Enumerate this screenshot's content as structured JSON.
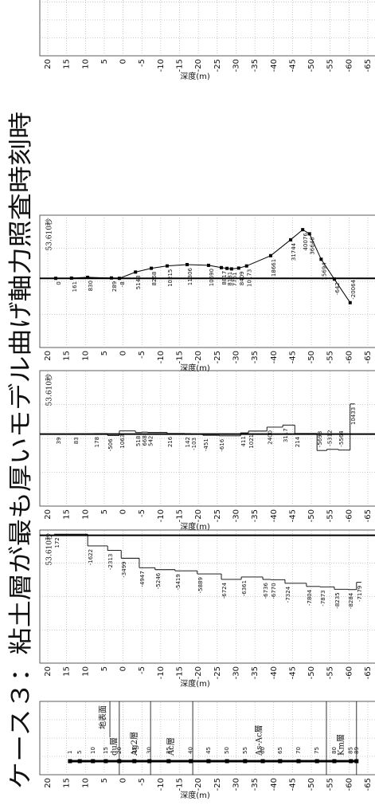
{
  "title": "ケース３：粘土層が最も厚いモデル曲げ軸力照査時刻時",
  "chart_data": [
    {
      "type": "column",
      "ylabel": "深度(m)",
      "ylim": [
        20,
        -65
      ],
      "yticks": [
        20,
        15,
        10,
        5,
        0,
        -5,
        -10,
        -15,
        -20,
        -25,
        -30,
        -35,
        -40,
        -45,
        -50,
        -55,
        -60,
        -65
      ],
      "surface_label": "地表面",
      "surface_depth": 3.5,
      "layers": [
        {
          "name": "du層",
          "top": 3.5,
          "bottom": 1
        },
        {
          "name": "Ag2層",
          "top": 1,
          "bottom": -7.3
        },
        {
          "name": "Ac層",
          "top": -7.3,
          "bottom": -18.5
        },
        {
          "name": "As-Ac層",
          "top": -18.5,
          "bottom": -54
        },
        {
          "name": "Km層",
          "top": -54,
          "bottom": -62
        }
      ],
      "nodes": {
        "labels": [
          "1",
          "5",
          "10",
          "15",
          "20",
          "25",
          "30",
          "35",
          "40",
          "45",
          "50",
          "55",
          "60",
          "65",
          "70",
          "75",
          "80",
          "85",
          "89"
        ],
        "depths": [
          14.1,
          11.5,
          8,
          4.6,
          1,
          -3,
          -7,
          -12.1,
          -18,
          -22.7,
          -27.6,
          -32.4,
          -37.1,
          -41.7,
          -46.6,
          -51.5,
          -56.1,
          -60.5,
          -62
        ]
      }
    },
    {
      "type": "step",
      "time_label": "53.610秒",
      "ylabel": "深度(m)",
      "ylim": [
        20,
        -65
      ],
      "yticks": [
        20,
        15,
        10,
        5,
        0,
        -5,
        -10,
        -15,
        -20,
        -25,
        -30,
        -35,
        -40,
        -45,
        -50,
        -55,
        -60,
        -65
      ],
      "xlim": [
        -19500,
        800
      ],
      "values": [
        172,
        -1622,
        -2313,
        -3499,
        -4947,
        -5246,
        -5419,
        -5889,
        -6724,
        -6361,
        -6736,
        -6770,
        -7324,
        -7804,
        -7873,
        -8235,
        -8284,
        -7179
      ],
      "y": [
        18.3,
        9.4,
        4.1,
        0.5,
        -4.3,
        -8.5,
        -13.8,
        -19.7,
        -26.1,
        -31.4,
        -37.1,
        -39.2,
        -43,
        -48.7,
        -52.3,
        -56.1,
        -59.7,
        -62
      ]
    },
    {
      "type": "step",
      "time_label": "53.610秒",
      "ylabel": "深度(m)",
      "ylim": [
        20,
        -65
      ],
      "yticks": [
        20,
        15,
        10,
        5,
        0,
        -5,
        -10,
        -15,
        -20,
        -25,
        -30,
        -35,
        -40,
        -45,
        -50,
        -55,
        -60,
        -65
      ],
      "xlim": [
        -25000,
        22000
      ],
      "values": [
        39,
        83,
        178,
        -506,
        1063,
        518,
        668,
        542,
        216,
        142,
        -103,
        -451,
        -616,
        411,
        1021,
        2400,
        3117,
        214,
        -5698,
        -5312,
        -5564,
        10433
      ],
      "y": [
        17.9,
        13.2,
        7.7,
        4.1,
        1,
        -3.3,
        -5,
        -6.5,
        -11.7,
        -16.4,
        -18.1,
        -21.2,
        -25.5,
        -31.2,
        -33.3,
        -38.2,
        -42.4,
        -45.6,
        -51.5,
        -54.1,
        -57.2,
        -60.3
      ]
    },
    {
      "type": "line",
      "time_label": "53.610秒",
      "ylabel": "深度(m)",
      "ylim": [
        20,
        -65
      ],
      "yticks": [
        20,
        15,
        10,
        5,
        0,
        -5,
        -10,
        -15,
        -20,
        -25,
        -30,
        -35,
        -40,
        -45,
        -50,
        -55,
        -60,
        -65
      ],
      "xlim": [
        -57000,
        52000
      ],
      "values": [
        0,
        161,
        830,
        289,
        -8,
        5148,
        8268,
        10215,
        11306,
        10690,
        8817,
        8181,
        7761,
        8409,
        10173,
        18661,
        31744,
        40076,
        36646,
        15694,
        -642,
        -20064
      ],
      "y": [
        17.9,
        13.7,
        9.4,
        3.1,
        1,
        -3.3,
        -7.5,
        -11.7,
        -17,
        -22.7,
        -26.1,
        -27.6,
        -28.8,
        -30.7,
        -32.8,
        -39.2,
        -44.5,
        -47.7,
        -49.5,
        -52.6,
        -56.1,
        -60.3
      ]
    },
    {
      "type": "blank",
      "ylabel": "深度(m)",
      "ylim": [
        20,
        -65
      ],
      "yticks": [
        20,
        15,
        10,
        5,
        0,
        -5,
        -10,
        -15,
        -20,
        -25,
        -30,
        -35,
        -40,
        -45,
        -50,
        -55,
        -60,
        -65
      ]
    }
  ]
}
